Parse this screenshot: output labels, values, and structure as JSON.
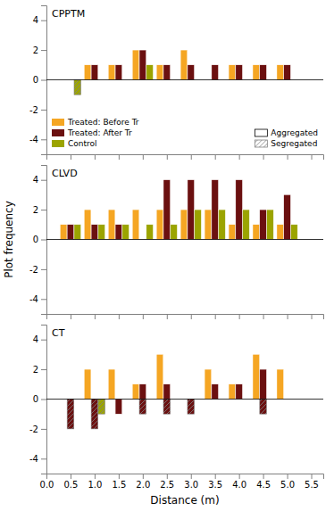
{
  "chart_data": [
    {
      "type": "bar",
      "title": "CPPTM",
      "x": [
        0.5,
        1.0,
        1.5,
        2.0,
        2.5,
        3.0,
        3.5,
        4.0,
        4.5,
        5.0
      ],
      "series": [
        {
          "name": "Treated: Before Tr",
          "color": "#F5A623",
          "values": [
            null,
            1,
            1,
            2,
            1,
            2,
            null,
            1,
            1,
            1
          ]
        },
        {
          "name": "Treated: After Tr",
          "color": "#6B1010",
          "values": [
            null,
            1,
            1,
            2,
            1,
            1,
            1,
            1,
            1,
            1
          ]
        },
        {
          "name": "Control",
          "color": "#9BA400",
          "values": [
            -1,
            null,
            null,
            1,
            null,
            null,
            null,
            null,
            null,
            null
          ],
          "hatch": [
            true,
            false,
            false,
            false,
            false,
            false,
            false,
            false,
            false,
            false
          ]
        }
      ],
      "patterns": [
        {
          "name": "Aggregated",
          "hatch": false
        },
        {
          "name": "Segregated",
          "hatch": true
        }
      ],
      "legend": "bottom",
      "xlim": [
        0,
        5.75
      ],
      "xticks": [
        0,
        0.5,
        1,
        1.5,
        2,
        2.5,
        3,
        3.5,
        4,
        4.5,
        5,
        5.5
      ],
      "ylim": [
        -5,
        5
      ],
      "yticks": [
        -4,
        -2,
        0,
        2,
        4
      ],
      "tick_labels": "y"
    },
    {
      "type": "bar",
      "title": "CLVD",
      "y_label": "Plot frequency",
      "x": [
        0.5,
        1.0,
        1.5,
        2.0,
        2.5,
        3.0,
        3.5,
        4.0,
        4.5,
        5.0
      ],
      "series": [
        {
          "name": "Treated: Before Tr",
          "color": "#F5A623",
          "values": [
            1,
            2,
            2,
            2,
            2,
            2,
            2,
            1,
            1,
            1
          ]
        },
        {
          "name": "Treated: After Tr",
          "color": "#6B1010",
          "values": [
            1,
            1,
            1,
            null,
            4,
            4,
            4,
            4,
            2,
            3
          ]
        },
        {
          "name": "Control",
          "color": "#9BA400",
          "values": [
            1,
            1,
            1,
            1,
            1,
            2,
            2,
            2,
            2,
            1
          ]
        }
      ],
      "xlim": [
        0,
        5.75
      ],
      "xticks": [
        0,
        0.5,
        1,
        1.5,
        2,
        2.5,
        3,
        3.5,
        4,
        4.5,
        5,
        5.5
      ],
      "ylim": [
        -5,
        5
      ],
      "yticks": [
        -4,
        -2,
        0,
        2,
        4
      ],
      "tick_labels": "y"
    },
    {
      "type": "bar",
      "title": "CT",
      "x_label": "Distance (m)",
      "x": [
        0.5,
        1.0,
        1.5,
        2.0,
        2.5,
        3.0,
        3.5,
        4.0,
        4.5,
        5.0
      ],
      "series": [
        {
          "name": "Treated: Before Tr",
          "color": "#F5A623",
          "values": [
            null,
            2,
            2,
            1,
            3,
            null,
            2,
            1,
            3,
            2
          ]
        },
        {
          "name": "Treated: After Tr",
          "color": "#6B1010",
          "values": [
            null,
            null,
            null,
            1,
            1,
            null,
            1,
            1,
            2,
            null
          ]
        },
        {
          "name": "Treated: After Tr",
          "color": "#6B1010",
          "values": [
            -2,
            -2,
            -1,
            -1,
            -1,
            -1,
            null,
            null,
            -1,
            null
          ],
          "hatch": [
            true,
            true,
            false,
            true,
            true,
            true,
            false,
            false,
            true,
            false
          ]
        },
        {
          "name": "Control",
          "color": "#9BA400",
          "values": [
            null,
            -1,
            null,
            null,
            null,
            null,
            null,
            null,
            null,
            null
          ],
          "hatch": [
            false,
            true,
            false,
            false,
            false,
            false,
            false,
            false,
            false,
            false
          ]
        }
      ],
      "xlim": [
        0,
        5.75
      ],
      "xticks": [
        {
          "value": 0,
          "label": "0.0"
        },
        0.5,
        {
          "value": 1,
          "label": "1.0"
        },
        1.5,
        {
          "value": 2,
          "label": "2.0"
        },
        2.5,
        {
          "value": 3,
          "label": "3.0"
        },
        3.5,
        {
          "value": 4,
          "label": "4.0"
        },
        4.5,
        {
          "value": 5,
          "label": "5.0"
        },
        5.5
      ],
      "ylim": [
        -5,
        5
      ],
      "yticks": [
        -4,
        -2,
        0,
        2,
        4
      ]
    }
  ]
}
